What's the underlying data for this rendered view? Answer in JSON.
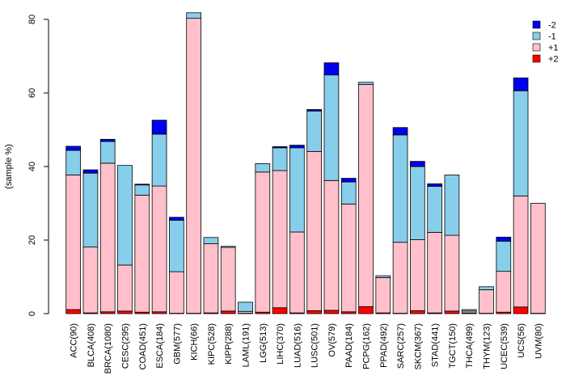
{
  "chart_data": {
    "type": "bar",
    "stacked": true,
    "title": "",
    "xlabel": "",
    "ylabel": "(sample %)",
    "ylim": [
      0,
      80
    ],
    "yticks": [
      0,
      20,
      40,
      60,
      80
    ],
    "grid": false,
    "legend_position": "top-right",
    "categories": [
      "ACC(90)",
      "BLCA(408)",
      "BRCA(1080)",
      "CESC(295)",
      "COAD(451)",
      "ESCA(184)",
      "GBM(577)",
      "KICH(66)",
      "KIPC(528)",
      "KIPP(288)",
      "LAML(191)",
      "LGG(513)",
      "LIHC(370)",
      "LUAD(516)",
      "LUSC(501)",
      "OV(579)",
      "PAAD(184)",
      "PCPG(162)",
      "PPAD(492)",
      "SARC(257)",
      "SKCM(367)",
      "STAD(441)",
      "TGCT(150)",
      "THCA(499)",
      "THYM(123)",
      "UCEC(539)",
      "UCS(56)",
      "UVM(80)"
    ],
    "series": [
      {
        "name": "+2",
        "color": "#ff0000",
        "values": [
          1.1,
          0.2,
          0.5,
          0.7,
          0.4,
          0.5,
          0.1,
          0.1,
          0.2,
          0.7,
          0.1,
          0.4,
          1.6,
          0.2,
          0.8,
          0.9,
          0.5,
          1.9,
          0.2,
          0.1,
          0.8,
          0.2,
          0.7,
          0.2,
          0.1,
          0.4,
          1.8,
          0.1
        ]
      },
      {
        "name": "+1",
        "color": "#ffc0cb",
        "values": [
          36.6,
          17.9,
          40.4,
          12.5,
          31.8,
          34.2,
          11.3,
          80.2,
          18.8,
          17.3,
          0.5,
          38.1,
          37.3,
          22.0,
          43.3,
          35.3,
          29.3,
          60.4,
          9.6,
          19.3,
          19.3,
          21.9,
          20.6,
          0.5,
          6.4,
          11.1,
          30.2,
          29.9
        ]
      },
      {
        "name": "-1",
        "color": "#87ceeb",
        "values": [
          6.7,
          20.1,
          5.9,
          27.1,
          2.8,
          14.1,
          14.0,
          1.5,
          1.7,
          0.3,
          2.5,
          2.3,
          6.2,
          22.9,
          11.0,
          28.7,
          6.0,
          0.6,
          0.5,
          29.2,
          19.9,
          12.5,
          16.4,
          0.4,
          0.8,
          8.2,
          28.6,
          0.0
        ]
      },
      {
        "name": "-2",
        "color": "#0000ee",
        "values": [
          1.1,
          0.9,
          0.6,
          0.0,
          0.2,
          3.8,
          0.8,
          0.0,
          0.0,
          0.0,
          0.0,
          0.0,
          0.3,
          0.7,
          0.4,
          3.3,
          1.0,
          0.0,
          0.0,
          2.0,
          1.4,
          0.7,
          0.0,
          0.0,
          0.0,
          1.1,
          3.5,
          0.0
        ]
      }
    ],
    "legend": [
      {
        "name": "-2",
        "color": "#0000ee"
      },
      {
        "name": "-1",
        "color": "#87ceeb"
      },
      {
        "name": "+1",
        "color": "#ffc0cb"
      },
      {
        "name": "+2",
        "color": "#ff0000"
      }
    ]
  }
}
